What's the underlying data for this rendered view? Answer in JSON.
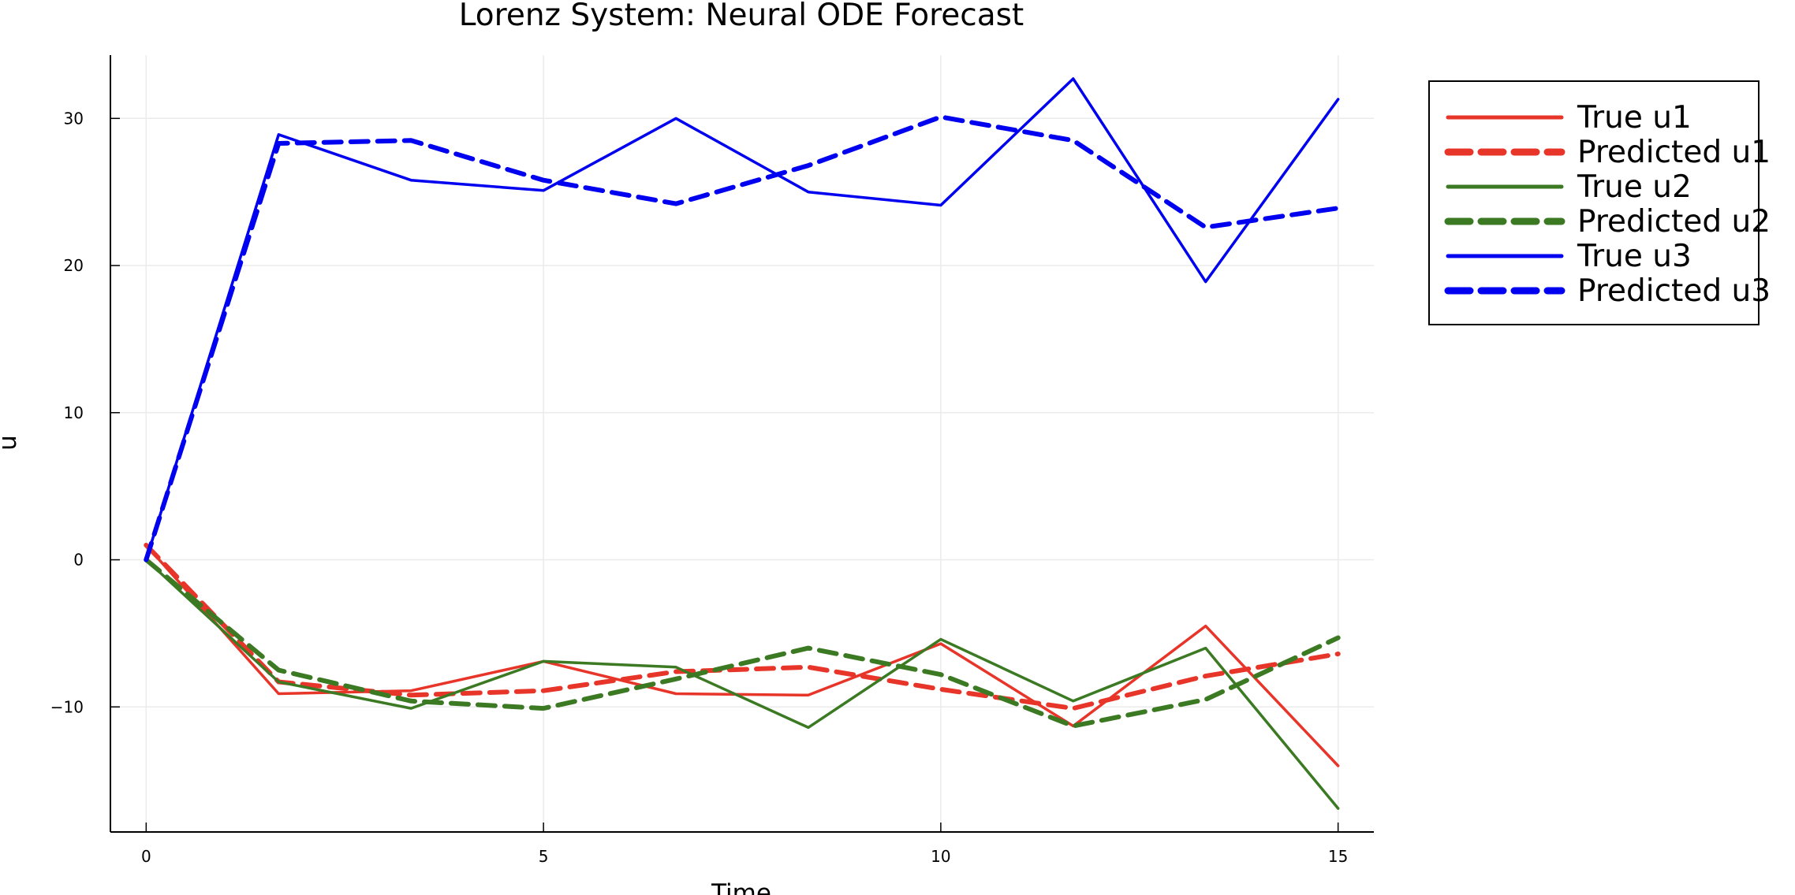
{
  "chart_data": {
    "type": "line",
    "title": "Lorenz System: Neural ODE Forecast",
    "xlabel": "Time",
    "ylabel": "u",
    "xlim": [
      -0.45,
      15.45
    ],
    "ylim": [
      -18.5,
      34.3
    ],
    "xticks": [
      0,
      5,
      10,
      15
    ],
    "xtick_labels": [
      "0",
      "5",
      "10",
      "15"
    ],
    "yticks": [
      -10,
      0,
      10,
      20,
      30
    ],
    "ytick_labels": [
      "−10",
      "0",
      "10",
      "20",
      "30"
    ],
    "grid": true,
    "legend_position": "outer-top-right",
    "x": [
      0,
      1.667,
      3.333,
      5,
      6.667,
      8.333,
      10,
      11.667,
      13.333,
      15
    ],
    "series": [
      {
        "name": "True u1",
        "color": "#e8352a",
        "style": "solid",
        "values": [
          1.0,
          -9.1,
          -8.9,
          -6.9,
          -9.1,
          -9.2,
          -5.7,
          -11.3,
          -4.5,
          -14.0
        ]
      },
      {
        "name": "Predicted u1",
        "color": "#e8352a",
        "style": "dashed",
        "values": [
          1.0,
          -8.3,
          -9.2,
          -8.9,
          -7.6,
          -7.3,
          -8.8,
          -10.1,
          -7.9,
          -6.4
        ]
      },
      {
        "name": "True u2",
        "color": "#3b7a23",
        "style": "solid",
        "values": [
          0.0,
          -8.3,
          -10.1,
          -6.9,
          -7.3,
          -11.4,
          -5.4,
          -9.6,
          -6.0,
          -16.9
        ]
      },
      {
        "name": "Predicted u2",
        "color": "#3b7a23",
        "style": "dashed",
        "values": [
          0.0,
          -7.5,
          -9.6,
          -10.1,
          -8.1,
          -6.0,
          -7.8,
          -11.3,
          -9.5,
          -5.3
        ]
      },
      {
        "name": "True u3",
        "color": "#0000f0",
        "style": "solid",
        "values": [
          0.0,
          28.9,
          25.8,
          25.1,
          30.0,
          25.0,
          24.1,
          32.7,
          18.9,
          31.3
        ]
      },
      {
        "name": "Predicted u3",
        "color": "#0000f0",
        "style": "dashed",
        "values": [
          0.0,
          28.3,
          28.5,
          25.8,
          24.2,
          26.8,
          30.1,
          28.5,
          22.6,
          23.9
        ]
      }
    ]
  }
}
